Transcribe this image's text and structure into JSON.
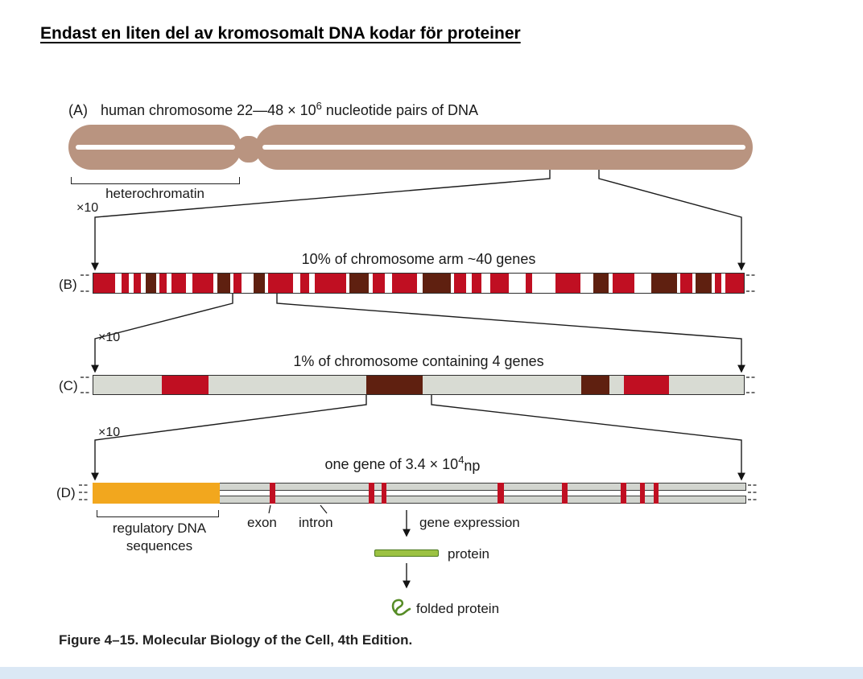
{
  "header": {
    "title": "Endast en liten del av kromosomalt DNA kodar för proteiner"
  },
  "zoom_factor": "×10",
  "colors": {
    "tan": "#b99480",
    "red": "#c00f22",
    "dark": "#5f2010",
    "gray_bar": "#d8dbd3",
    "gray_track": "#d2d5cf",
    "orange": "#f2a71e",
    "green": "#9cc243",
    "green_dark": "#4c7a1f",
    "footer_blue": "#dbe8f5"
  },
  "panelA": {
    "label": "(A)",
    "title_pre": "human chromosome 22—48 × 10",
    "title_sup": "6",
    "title_post": " nucleotide pairs of DNA",
    "heterochromatin": "heterochromatin"
  },
  "panelB": {
    "label": "(B)",
    "title": "10% of chromosome arm ~40 genes",
    "segments": [
      {
        "x": 0,
        "w": 3.4,
        "c": "red"
      },
      {
        "x": 4.3,
        "w": 1.1,
        "c": "red"
      },
      {
        "x": 6.2,
        "w": 1.1,
        "c": "red"
      },
      {
        "x": 8.0,
        "w": 1.6,
        "c": "dark"
      },
      {
        "x": 10.2,
        "w": 1.1,
        "c": "red"
      },
      {
        "x": 12.0,
        "w": 2.2,
        "c": "red"
      },
      {
        "x": 15.2,
        "w": 3.3,
        "c": "red"
      },
      {
        "x": 19.0,
        "w": 2.0,
        "c": "dark"
      },
      {
        "x": 21.5,
        "w": 1.3,
        "c": "red"
      },
      {
        "x": 24.6,
        "w": 1.8,
        "c": "dark"
      },
      {
        "x": 26.9,
        "w": 3.8,
        "c": "red"
      },
      {
        "x": 31.8,
        "w": 1.4,
        "c": "red"
      },
      {
        "x": 34.0,
        "w": 4.8,
        "c": "red"
      },
      {
        "x": 39.4,
        "w": 2.9,
        "c": "dark"
      },
      {
        "x": 42.9,
        "w": 1.9,
        "c": "red"
      },
      {
        "x": 45.9,
        "w": 3.9,
        "c": "red"
      },
      {
        "x": 50.6,
        "w": 4.3,
        "c": "dark"
      },
      {
        "x": 55.4,
        "w": 1.9,
        "c": "red"
      },
      {
        "x": 58.2,
        "w": 1.4,
        "c": "red"
      },
      {
        "x": 61.0,
        "w": 2.9,
        "c": "red"
      },
      {
        "x": 66.5,
        "w": 1.0,
        "c": "red"
      },
      {
        "x": 71.0,
        "w": 3.9,
        "c": "red"
      },
      {
        "x": 76.8,
        "w": 2.4,
        "c": "dark"
      },
      {
        "x": 79.8,
        "w": 3.4,
        "c": "red"
      },
      {
        "x": 85.8,
        "w": 3.9,
        "c": "dark"
      },
      {
        "x": 90.2,
        "w": 1.9,
        "c": "red"
      },
      {
        "x": 92.6,
        "w": 2.4,
        "c": "dark"
      },
      {
        "x": 95.5,
        "w": 1.0,
        "c": "red"
      },
      {
        "x": 97.2,
        "w": 2.8,
        "c": "red"
      }
    ]
  },
  "panelC": {
    "label": "(C)",
    "title": "1% of chromosome containing 4 genes",
    "segments": [
      {
        "x": 10.5,
        "w": 7.2,
        "c": "red"
      },
      {
        "x": 42.0,
        "w": 8.6,
        "c": "dark"
      },
      {
        "x": 75.0,
        "w": 4.3,
        "c": "dark"
      },
      {
        "x": 81.5,
        "w": 7.0,
        "c": "red"
      }
    ]
  },
  "panelD": {
    "label": "(D)",
    "title_pre": "one gene of 3.4 × 10",
    "title_sup": "4",
    "title_post": "np",
    "segments": [
      {
        "x": 0,
        "w": 19.5,
        "c": "orange"
      },
      {
        "x": 27.1,
        "w": 0.8,
        "c": "red"
      },
      {
        "x": 42.3,
        "w": 0.8,
        "c": "red"
      },
      {
        "x": 44.2,
        "w": 0.8,
        "c": "red"
      },
      {
        "x": 62.0,
        "w": 0.9,
        "c": "red"
      },
      {
        "x": 71.8,
        "w": 0.8,
        "c": "red"
      },
      {
        "x": 80.8,
        "w": 0.8,
        "c": "red"
      },
      {
        "x": 83.7,
        "w": 0.8,
        "c": "red"
      },
      {
        "x": 85.8,
        "w": 0.8,
        "c": "red"
      }
    ],
    "regulatory_line1": "regulatory DNA",
    "regulatory_line2": "sequences",
    "exon_label": "exon",
    "intron_label": "intron",
    "gene_expression": "gene expression",
    "protein": "protein",
    "folded_protein": "folded protein"
  },
  "caption": "Figure 4–15. Molecular Biology of the Cell, 4th Edition."
}
